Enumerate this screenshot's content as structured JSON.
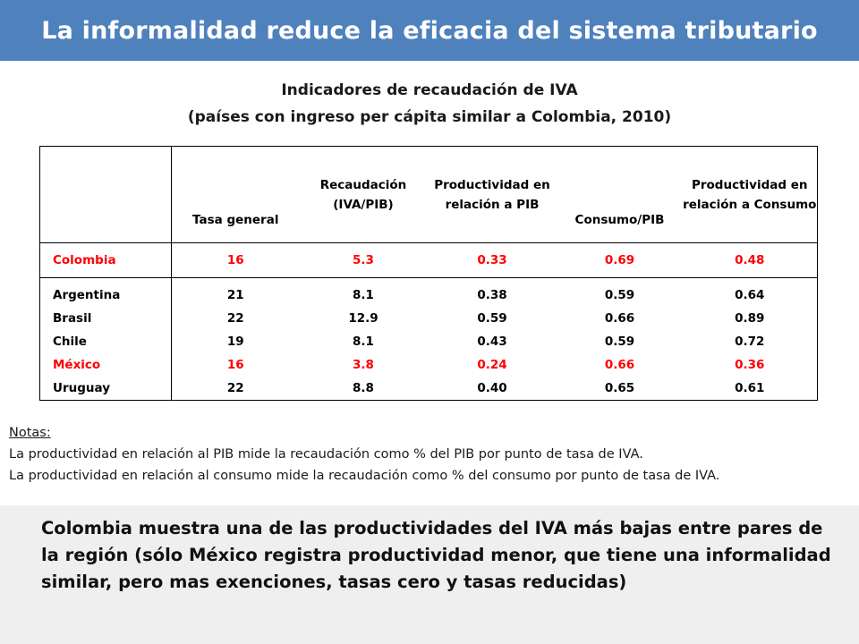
{
  "header": {
    "title": "La informalidad reduce la eficacia del sistema tributario"
  },
  "subtitle": {
    "line1": "Indicadores de recaudación de IVA",
    "line2": "(países con ingreso per cápita similar a Colombia, 2010)"
  },
  "table": {
    "headers": [
      "",
      "Tasa general",
      "Recaudación (IVA/PIB)",
      "Productividad en relación a PIB",
      "Consumo/PIB",
      "Productividad en relación a Consumo"
    ],
    "colombia": [
      "Colombia",
      "16",
      "5.3",
      "0.33",
      "0.69",
      "0.48"
    ],
    "peers": {
      "countries": [
        "Argentina",
        "Brasil",
        "Chile",
        "México",
        "Uruguay"
      ],
      "tasa_general": [
        "21",
        "22",
        "19",
        "16",
        "22"
      ],
      "recaudacion": [
        "8.1",
        "12.9",
        "8.1",
        "3.8",
        "8.8"
      ],
      "prod_pib": [
        "0.38",
        "0.59",
        "0.43",
        "0.24",
        "0.40"
      ],
      "consumo_pib": [
        "0.59",
        "0.66",
        "0.59",
        "0.66",
        "0.65"
      ],
      "prod_consumo": [
        "0.64",
        "0.89",
        "0.72",
        "0.36",
        "0.61"
      ]
    },
    "highlight_color": "#ff0000"
  },
  "notes": {
    "label": "Notas:",
    "line1": "La productividad en relación al PIB mide la recaudación como % del PIB por punto de tasa de IVA.",
    "line2": "La productividad en relación al consumo mide la recaudación como % del consumo por punto de tasa de IVA."
  },
  "summary": {
    "text": "Colombia muestra una de las productividades del IVA más bajas entre pares de la región (sólo México registra productividad menor, que tiene una informalidad similar, pero mas exenciones, tasas cero y tasas reducidas)"
  },
  "colors": {
    "header_bg": "#4f81bd",
    "summary_bg": "#efefef"
  }
}
